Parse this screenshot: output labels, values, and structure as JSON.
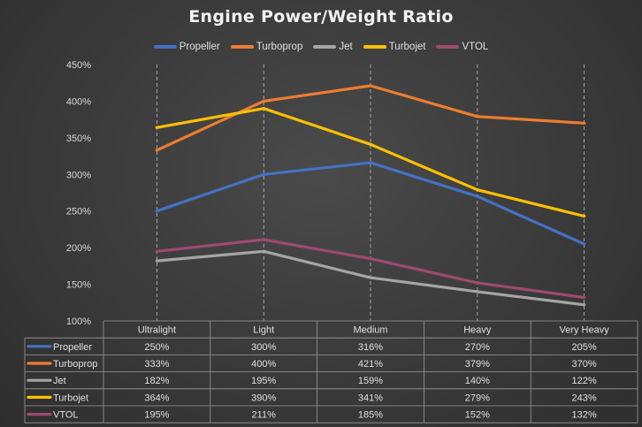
{
  "chart_data": {
    "type": "line",
    "title": "Engine Power/Weight Ratio",
    "categories": [
      "Ultralight",
      "Light",
      "Medium",
      "Heavy",
      "Very Heavy"
    ],
    "y_ticks": [
      "450%",
      "400%",
      "350%",
      "300%",
      "250%",
      "200%",
      "150%",
      "100%"
    ],
    "ylim": [
      100,
      450
    ],
    "ytick_step": 50,
    "grid": "vertical dashed",
    "legend_position": "top",
    "data_table": true,
    "series": [
      {
        "name": "Propeller",
        "color": "#4472c4",
        "values": [
          250,
          300,
          316,
          270,
          205
        ],
        "labels": [
          "250%",
          "300%",
          "316%",
          "270%",
          "205%"
        ]
      },
      {
        "name": "Turboprop",
        "color": "#ed7d31",
        "values": [
          333,
          400,
          421,
          379,
          370
        ],
        "labels": [
          "333%",
          "400%",
          "421%",
          "379%",
          "370%"
        ]
      },
      {
        "name": "Jet",
        "color": "#a5a5a5",
        "values": [
          182,
          195,
          159,
          140,
          122
        ],
        "labels": [
          "182%",
          "195%",
          "159%",
          "140%",
          "122%"
        ]
      },
      {
        "name": "Turbojet",
        "color": "#ffc000",
        "values": [
          364,
          390,
          341,
          279,
          243
        ],
        "labels": [
          "364%",
          "390%",
          "341%",
          "279%",
          "243%"
        ]
      },
      {
        "name": "VTOL",
        "color": "#9e4a6e",
        "values": [
          195,
          211,
          185,
          152,
          132
        ],
        "labels": [
          "195%",
          "211%",
          "185%",
          "152%",
          "132%"
        ]
      }
    ]
  }
}
